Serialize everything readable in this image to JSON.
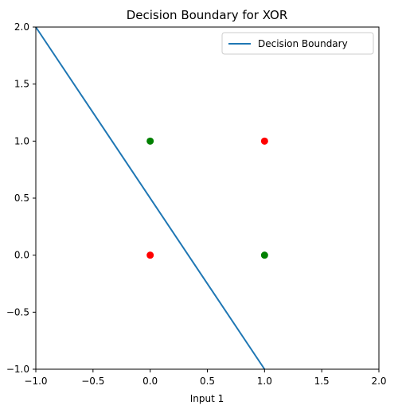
{
  "chart_data": {
    "type": "scatter",
    "title": "Decision Boundary for XOR",
    "xlabel": "Input 1",
    "ylabel": "",
    "xlim": [
      -1.0,
      2.0
    ],
    "ylim": [
      -1.0,
      2.0
    ],
    "x_ticks": [
      "−1.0",
      "−0.5",
      "0.0",
      "0.5",
      "1.0",
      "1.5",
      "2.0"
    ],
    "x_tick_values": [
      -1.0,
      -0.5,
      0.0,
      0.5,
      1.0,
      1.5,
      2.0
    ],
    "y_ticks": [
      "−1.0",
      "−0.5",
      "0.0",
      "0.5",
      "1.0",
      "1.5",
      "2.0"
    ],
    "y_tick_values": [
      -1.0,
      -0.5,
      0.0,
      0.5,
      1.0,
      1.5,
      2.0
    ],
    "grid": false,
    "legend_position": "top-right",
    "points": [
      {
        "x": 0,
        "y": 0,
        "color": "#ff0000"
      },
      {
        "x": 0,
        "y": 1,
        "color": "#008000"
      },
      {
        "x": 1,
        "y": 0,
        "color": "#008000"
      },
      {
        "x": 1,
        "y": 1,
        "color": "#ff0000"
      }
    ],
    "series": [
      {
        "name": "Decision Boundary",
        "type": "line",
        "color": "#1f77b4",
        "x": [
          -1.0,
          1.0
        ],
        "y": [
          2.0,
          -1.0
        ]
      }
    ]
  }
}
